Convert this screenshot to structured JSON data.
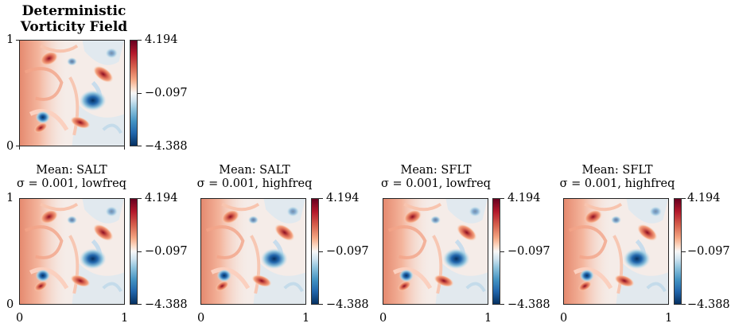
{
  "top_panel": {
    "title_line1": "Deterministic",
    "title_line2": "Vorticity Field",
    "y_top": "1",
    "y_bottom": "0",
    "cbar_max": "4.194",
    "cbar_mid": "−0.097",
    "cbar_min": "−4.388"
  },
  "bottom_panels": [
    {
      "line1": "Mean: SALT",
      "line2": "σ = 0.001, lowfreq",
      "cbar_max": "4.194",
      "cbar_mid": "−0.097",
      "cbar_min": "−4.388",
      "x_left": "0",
      "x_right": "1",
      "y_top": "1",
      "y_bottom": "0"
    },
    {
      "line1": "Mean: SALT",
      "line2": "σ = 0.001, highfreq",
      "cbar_max": "4.194",
      "cbar_mid": "−0.097",
      "cbar_min": "−4.388",
      "x_left": "0",
      "x_right": "1"
    },
    {
      "line1": "Mean: SFLT",
      "line2": "σ = 0.001, lowfreq",
      "cbar_max": "4.194",
      "cbar_mid": "−0.097",
      "cbar_min": "−4.388",
      "x_left": "0",
      "x_right": "1"
    },
    {
      "line1": "Mean: SFLT",
      "line2": "σ = 0.001, highfreq",
      "cbar_max": "4.194",
      "cbar_mid": "−0.097",
      "cbar_min": "−4.388",
      "x_left": "0",
      "x_right": "1"
    }
  ],
  "colors": {
    "cmap_high": "#67001f",
    "cmap_mid": "#f7f7f7",
    "cmap_low": "#053061"
  }
}
